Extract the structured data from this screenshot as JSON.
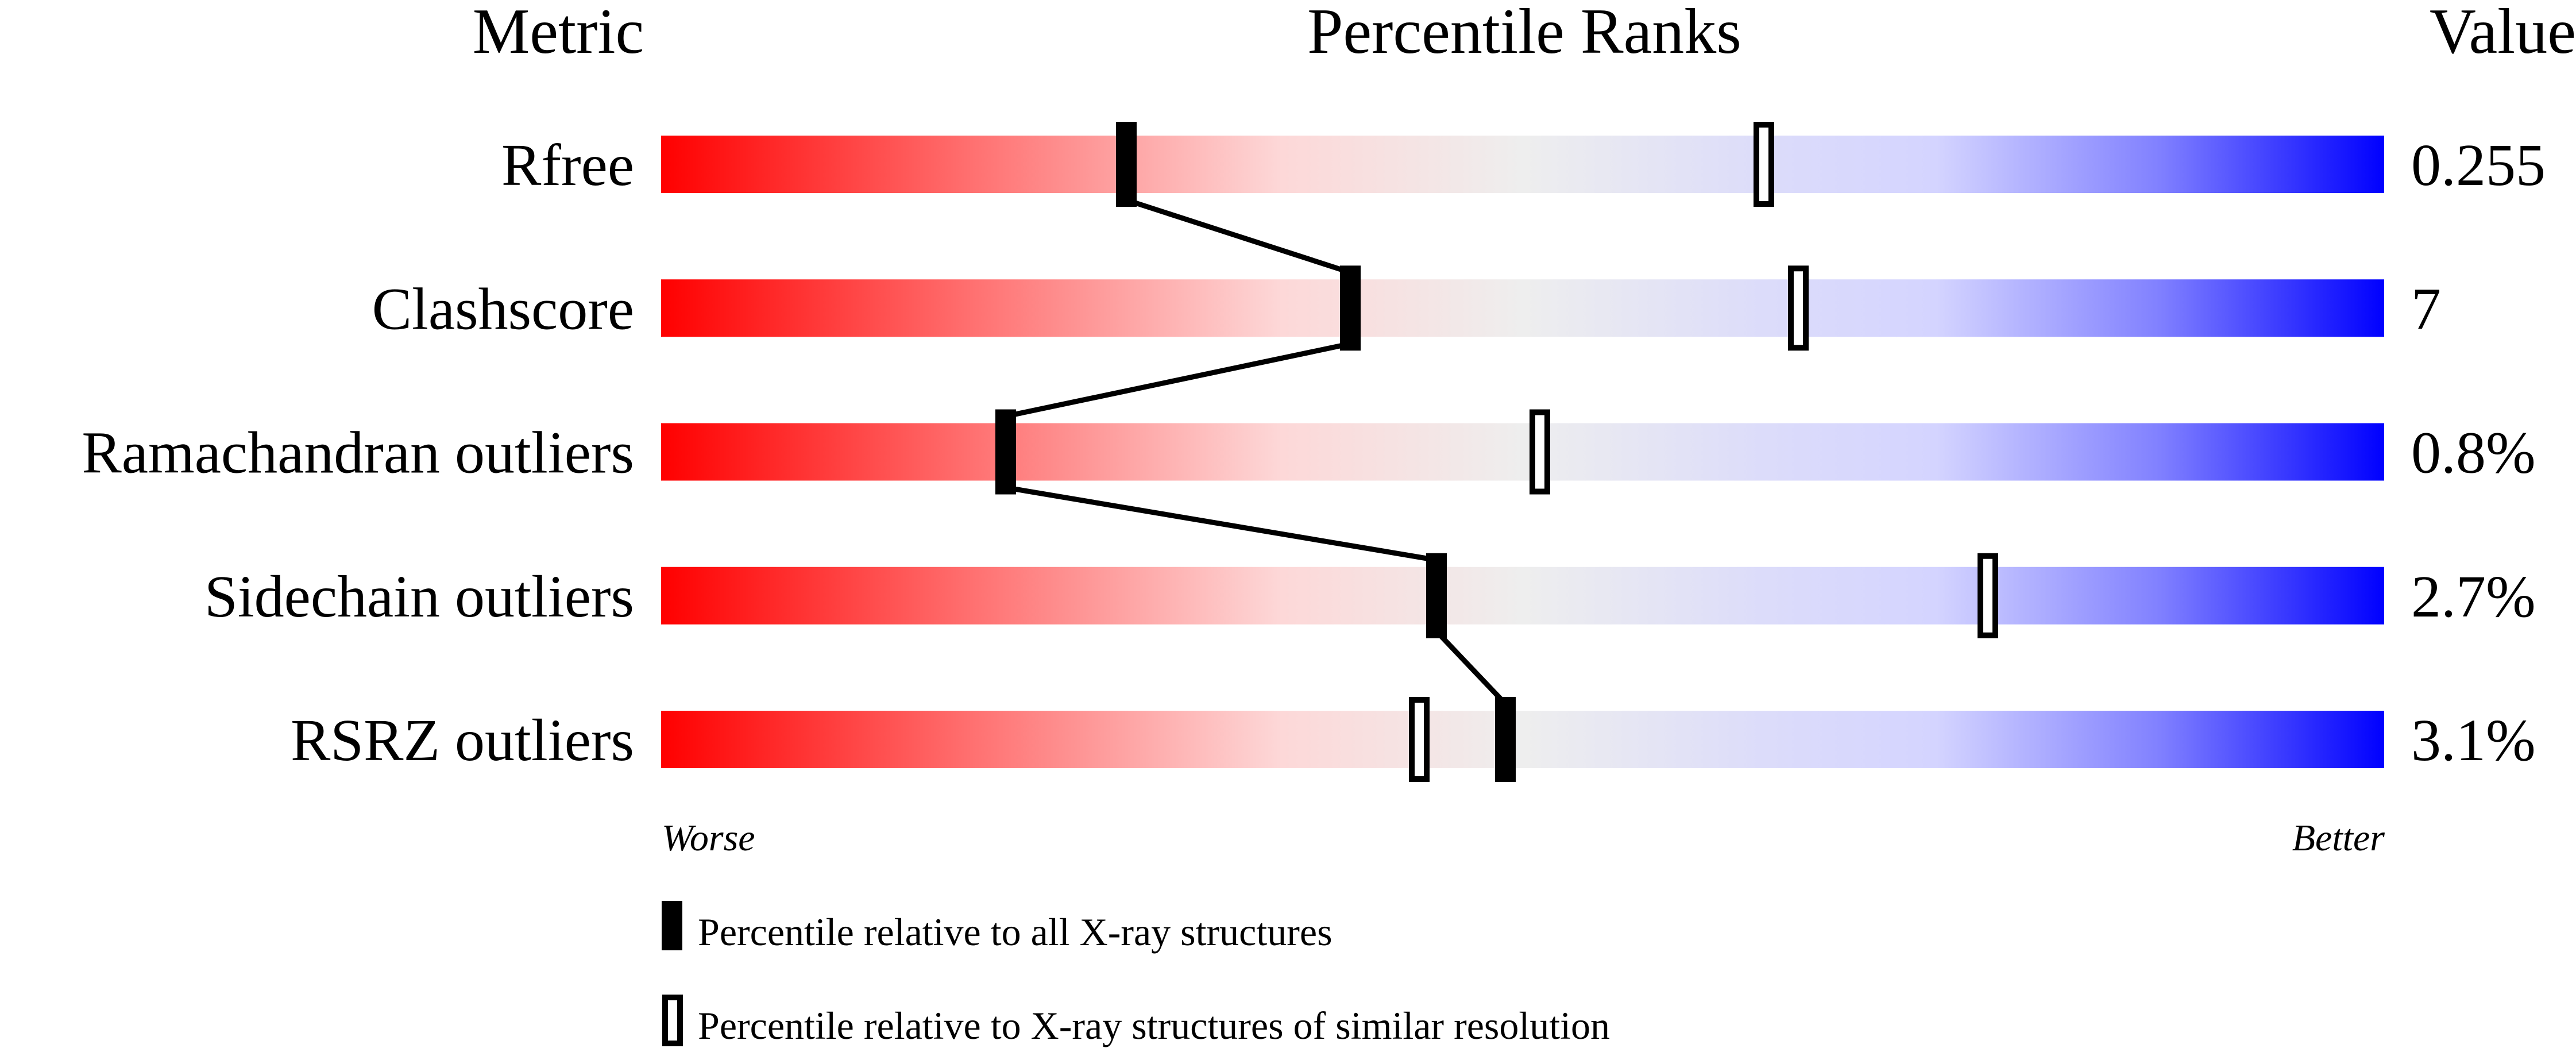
{
  "chart_data": {
    "type": "bar",
    "headers": {
      "metric": "Metric",
      "ranks": "Percentile Ranks",
      "value": "Value"
    },
    "categories": [
      "Rfree",
      "Clashscore",
      "Ramachandran outliers",
      "Sidechain outliers",
      "RSRZ outliers"
    ],
    "values": [
      "0.255",
      "7",
      "0.8%",
      "2.7%",
      "3.1%"
    ],
    "series": [
      {
        "name": "Percentile relative to all X-ray structures",
        "marker": "filled",
        "values": [
          27,
          40,
          20,
          45,
          49
        ]
      },
      {
        "name": "Percentile relative to X-ray structures of similar resolution",
        "marker": "open",
        "values": [
          64,
          66,
          51,
          77,
          44
        ]
      }
    ],
    "xlim": [
      0,
      100
    ],
    "axis_left_label": "Worse",
    "axis_right_label": "Better",
    "colors": {
      "worse": "#ff0000",
      "middle": "#eeeeee",
      "better": "#0000ff"
    },
    "legend_position": "bottom"
  }
}
